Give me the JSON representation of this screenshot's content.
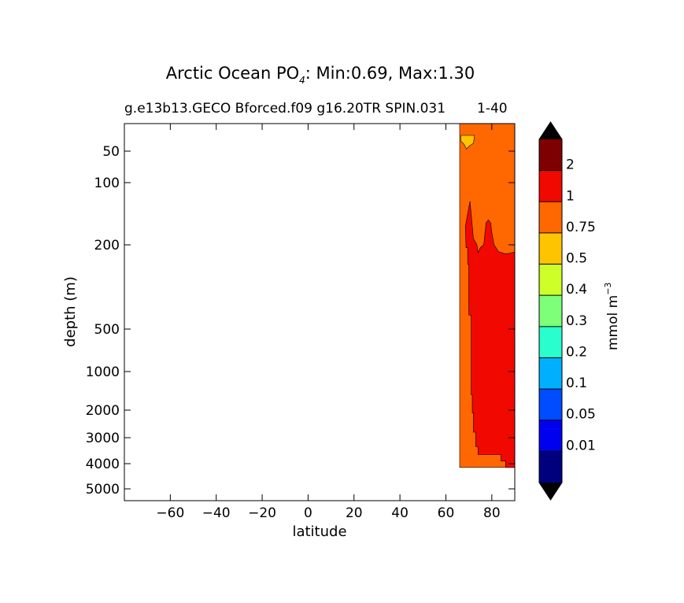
{
  "chart_data": {
    "type": "contour",
    "title_prefix": "Arctic Ocean PO",
    "title_sub": "4",
    "title_suffix": ": Min:0.69, Max:1.30",
    "subtitle": "g.e13b13.GECO Bforced.f09 g16.20TR SPIN.031",
    "subtitle_overlap": "1-40",
    "xlabel": "latitude",
    "ylabel": "depth (m)",
    "xlim": [
      -80,
      90
    ],
    "x_ticks": [
      -60,
      -40,
      -20,
      0,
      20,
      40,
      60,
      80
    ],
    "x_tick_labels": [
      "−60",
      "−40",
      "−20",
      "0",
      "20",
      "40",
      "60",
      "80"
    ],
    "y_scale": "custom depth (log-like), increasing downward",
    "y_ticks": [
      50,
      100,
      200,
      500,
      1000,
      2000,
      3000,
      4000,
      5000
    ],
    "y_tick_labels": [
      "50",
      "100",
      "200",
      "500",
      "1000",
      "2000",
      "3000",
      "4000",
      "5000"
    ],
    "colorbar": {
      "label_main": "mmol m",
      "label_exp": "−3",
      "levels": [
        0.01,
        0.05,
        0.1,
        0.2,
        0.3,
        0.4,
        0.5,
        0.75,
        1,
        2
      ],
      "level_labels": [
        "0.01",
        "0.05",
        "0.1",
        "0.2",
        "0.3",
        "0.4",
        "0.5",
        "0.75",
        "1",
        "2"
      ],
      "colors": [
        "#00007f",
        "#0000f1",
        "#004cff",
        "#00b0ff",
        "#29ffce",
        "#7dff7a",
        "#ceff29",
        "#ffc400",
        "#ff6800",
        "#f10800",
        "#7f0000"
      ],
      "extend": "both",
      "extend_color": "#000000"
    },
    "regions": [
      {
        "range": "1-2",
        "color": "#f10800",
        "outline": [
          [
            68.5,
            170
          ],
          [
            70.5,
            130
          ],
          [
            72,
            190
          ],
          [
            73.5,
            200
          ],
          [
            74,
            228
          ],
          [
            75,
            210
          ],
          [
            76.5,
            200
          ],
          [
            77.5,
            165
          ],
          [
            78.5,
            160
          ],
          [
            79.5,
            165
          ],
          [
            80,
            180
          ],
          [
            81,
            200
          ],
          [
            83,
            225
          ],
          [
            86,
            232
          ],
          [
            88,
            230
          ],
          [
            90,
            225
          ],
          [
            90,
            4150
          ],
          [
            86,
            4150
          ],
          [
            86,
            3900
          ],
          [
            84,
            3900
          ],
          [
            84,
            3650
          ],
          [
            80,
            3650
          ],
          [
            80,
            3650
          ],
          [
            74,
            3650
          ],
          [
            74,
            3350
          ],
          [
            73,
            3350
          ],
          [
            73,
            2800
          ],
          [
            72,
            2800
          ],
          [
            72,
            2100
          ],
          [
            71.5,
            2100
          ],
          [
            71.5,
            1600
          ],
          [
            71,
            1600
          ],
          [
            71,
            450
          ],
          [
            70,
            450
          ],
          [
            70,
            270
          ],
          [
            69.5,
            270
          ],
          [
            69.5,
            210
          ],
          [
            68.8,
            210
          ]
        ]
      },
      {
        "range": "0.5-0.75",
        "color": "#ffc400",
        "outline": [
          [
            66.5,
            10
          ],
          [
            72.5,
            10
          ],
          [
            72,
            30
          ],
          [
            70,
            38
          ],
          [
            69,
            45
          ],
          [
            68,
            33
          ],
          [
            67,
            27
          ],
          [
            66.5,
            25
          ]
        ]
      }
    ],
    "field_background": {
      "range": "0.75-1",
      "color": "#ff6800",
      "lat_from": 66,
      "top_depth": 10,
      "bottom_depth": 4150
    }
  }
}
